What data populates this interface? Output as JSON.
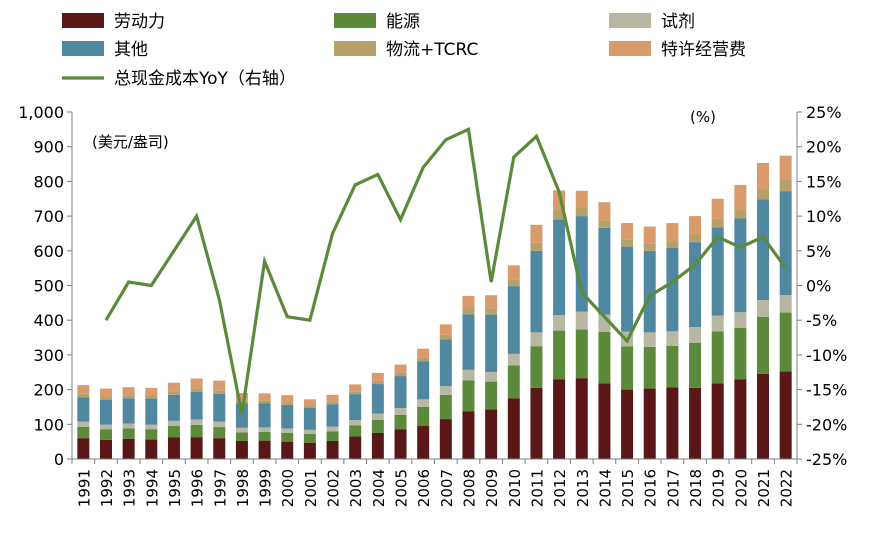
{
  "chart_data": {
    "type": "bar",
    "stacked": true,
    "left_unit": "(美元/盎司)",
    "right_unit": "(%)",
    "categories": [
      "1991",
      "1992",
      "1993",
      "1994",
      "1995",
      "1996",
      "1997",
      "1998",
      "1999",
      "2000",
      "2001",
      "2002",
      "2003",
      "2004",
      "2005",
      "2006",
      "2007",
      "2008",
      "2009",
      "2010",
      "2011",
      "2012",
      "2013",
      "2014",
      "2015",
      "2016",
      "2017",
      "2018",
      "2019",
      "2020",
      "2021",
      "2022"
    ],
    "ylim": [
      0,
      1000
    ],
    "yticks": [
      "0",
      "100",
      "200",
      "300",
      "400",
      "500",
      "600",
      "700",
      "800",
      "900",
      "1,000"
    ],
    "y2lim": [
      -25,
      25
    ],
    "y2ticks": [
      "-25%",
      "-20%",
      "-15%",
      "-10%",
      "-5%",
      "0%",
      "5%",
      "10%",
      "15%",
      "20%",
      "25%"
    ],
    "series": [
      {
        "name": "劳动力",
        "color": "#5a1717",
        "values": [
          60,
          55,
          58,
          56,
          62,
          63,
          60,
          52,
          53,
          50,
          47,
          52,
          65,
          75,
          85,
          95,
          115,
          137,
          143,
          175,
          205,
          230,
          233,
          218,
          200,
          203,
          206,
          205,
          218,
          230,
          245,
          252
        ]
      },
      {
        "name": "能源",
        "color": "#5b8a3a",
        "values": [
          33,
          30,
          30,
          30,
          33,
          35,
          32,
          25,
          25,
          25,
          25,
          28,
          32,
          38,
          42,
          55,
          70,
          90,
          80,
          95,
          120,
          140,
          140,
          148,
          125,
          120,
          120,
          130,
          150,
          148,
          165,
          170
        ]
      },
      {
        "name": "试剂",
        "color": "#b7b7a4",
        "values": [
          15,
          14,
          14,
          13,
          15,
          16,
          16,
          13,
          13,
          13,
          12,
          13,
          15,
          18,
          20,
          22,
          25,
          30,
          28,
          33,
          40,
          45,
          52,
          50,
          42,
          42,
          42,
          45,
          45,
          45,
          48,
          50
        ]
      },
      {
        "name": "其他",
        "color": "#4f88a0",
        "values": [
          70,
          72,
          73,
          75,
          75,
          80,
          80,
          70,
          70,
          68,
          63,
          65,
          75,
          85,
          92,
          110,
          135,
          160,
          165,
          195,
          235,
          275,
          275,
          250,
          245,
          235,
          240,
          245,
          255,
          270,
          290,
          300
        ]
      },
      {
        "name": "物流+TCRC",
        "color": "#b5a06a",
        "values": [
          10,
          9,
          9,
          9,
          10,
          10,
          10,
          8,
          8,
          8,
          7,
          8,
          8,
          9,
          10,
          11,
          13,
          18,
          18,
          20,
          23,
          26,
          25,
          22,
          20,
          20,
          20,
          22,
          24,
          27,
          30,
          32
        ]
      },
      {
        "name": "特许经营费",
        "color": "#d99a6c",
        "values": [
          25,
          23,
          23,
          22,
          25,
          28,
          28,
          22,
          20,
          20,
          18,
          19,
          20,
          23,
          23,
          25,
          30,
          35,
          38,
          40,
          52,
          58,
          48,
          52,
          48,
          50,
          52,
          53,
          58,
          70,
          75,
          70
        ]
      }
    ],
    "line": {
      "name": "总现金成本YoY（右轴）",
      "color": "#5b8a3a",
      "values": [
        null,
        -5,
        0.5,
        0,
        5,
        10,
        -2,
        -18.5,
        3.5,
        -4.5,
        -5,
        7.5,
        14.5,
        16,
        9.5,
        17,
        21,
        22.5,
        0.5,
        18.5,
        21.5,
        13.5,
        -1,
        -4.5,
        -8,
        -1.5,
        0.5,
        3,
        7,
        5.5,
        7,
        2.5
      ]
    }
  }
}
